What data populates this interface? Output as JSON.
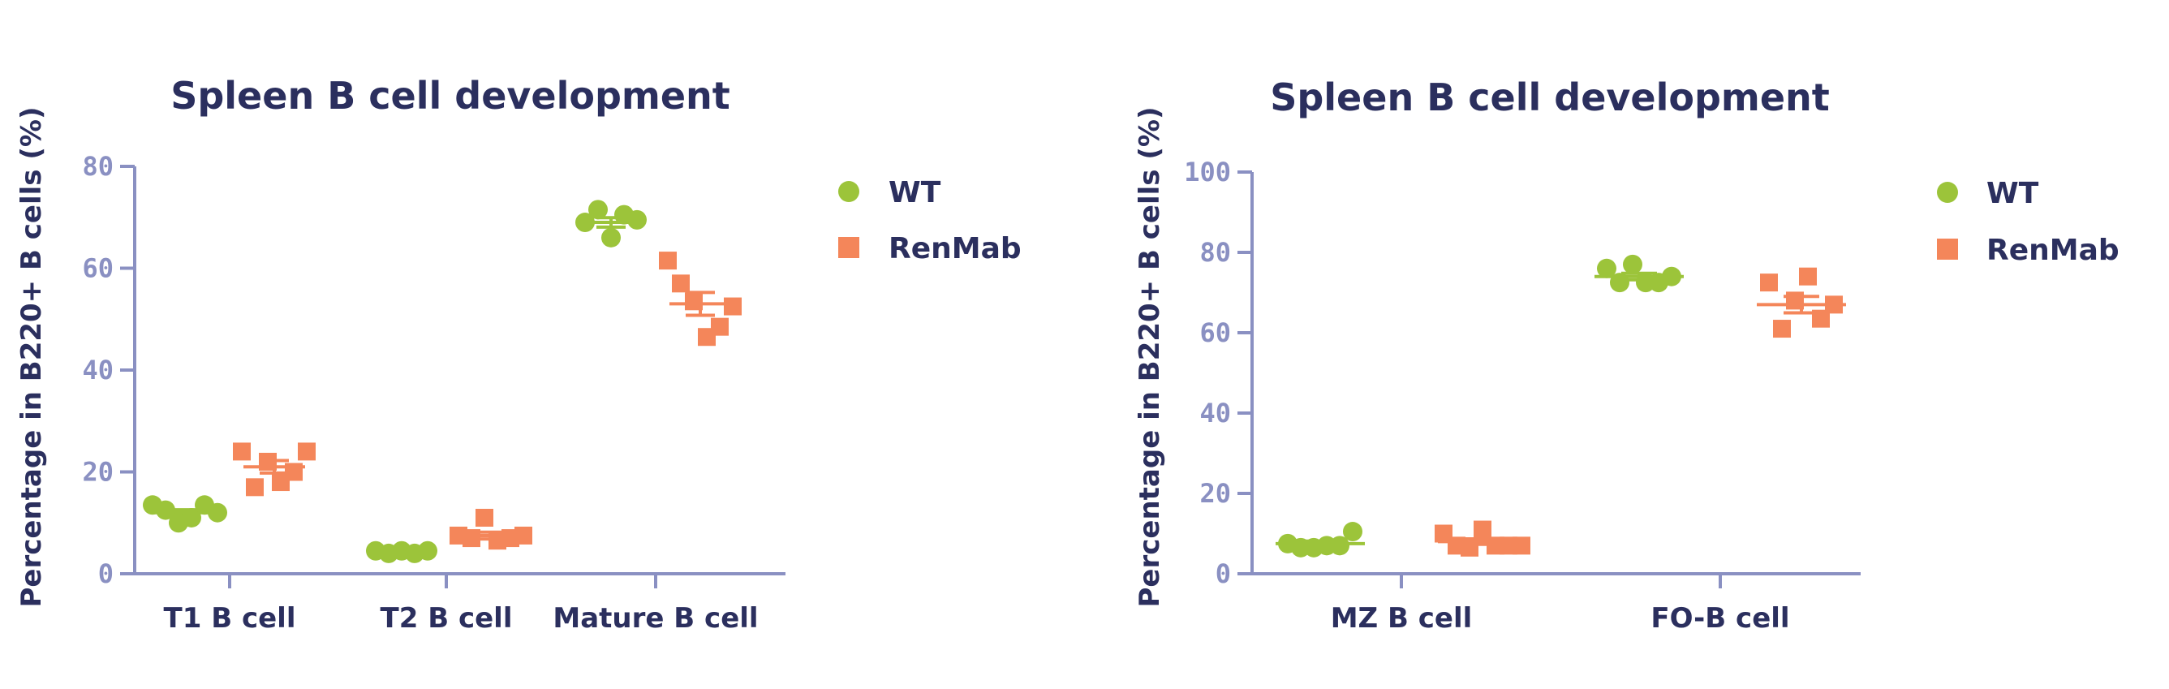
{
  "colors": {
    "wt": "#9cc43a",
    "renmab": "#f4865a",
    "axis": "#8a90c2",
    "text": "#2b2f5e"
  },
  "chart_data": [
    {
      "type": "scatter",
      "title": "Spleen B cell development",
      "ylabel": "Percentage in B220+ B cells (%)",
      "ylim": [
        0,
        80
      ],
      "yticks": [
        "0",
        "20",
        "40",
        "60",
        "80"
      ],
      "categories": [
        "T1 B cell",
        "T2 B cell",
        "Mature B cell"
      ],
      "legend": [
        {
          "name": "WT",
          "shape": "circle"
        },
        {
          "name": "RenMab",
          "shape": "square"
        }
      ],
      "legend_position": "top-right",
      "series": [
        {
          "name": "WT",
          "shape": "circle",
          "values": [
            [
              13.5,
              12.5,
              10,
              11,
              13.5,
              12
            ],
            [
              4.5,
              4,
              4.5,
              4,
              4.5
            ],
            [
              69,
              71.5,
              66,
              70.5,
              69.5
            ]
          ],
          "means": [
            12,
            4.3,
            69
          ]
        },
        {
          "name": "RenMab",
          "shape": "square",
          "values": [
            [
              24,
              17,
              22,
              18,
              20,
              24
            ],
            [
              7.5,
              7,
              11,
              6.5,
              7,
              7.5
            ],
            [
              61.5,
              57,
              53.5,
              46.5,
              48.5,
              52.5
            ]
          ],
          "means": [
            21,
            7.5,
            53
          ]
        }
      ]
    },
    {
      "type": "scatter",
      "title": "Spleen B cell development",
      "ylabel": "Percentage in B220+ B cells (%)",
      "ylim": [
        0,
        100
      ],
      "yticks": [
        "0",
        "20",
        "40",
        "60",
        "80",
        "100"
      ],
      "categories": [
        "MZ B cell",
        "FO-B cell"
      ],
      "legend": [
        {
          "name": "WT",
          "shape": "circle"
        },
        {
          "name": "RenMab",
          "shape": "square"
        }
      ],
      "legend_position": "top-right",
      "series": [
        {
          "name": "WT",
          "shape": "circle",
          "values": [
            [
              7.5,
              6.5,
              6.5,
              7,
              7,
              10.5
            ],
            [
              76,
              72.5,
              77,
              72.5,
              72.5,
              74
            ]
          ],
          "means": [
            7.5,
            74
          ]
        },
        {
          "name": "RenMab",
          "shape": "square",
          "values": [
            [
              10,
              7,
              6.5,
              11,
              7,
              7,
              7
            ],
            [
              72.5,
              61,
              68,
              74,
              63.5,
              67
            ]
          ],
          "means": [
            8,
            67
          ]
        }
      ]
    }
  ]
}
